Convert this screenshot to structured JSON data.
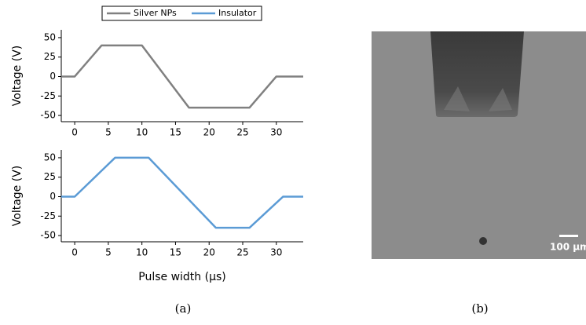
{
  "chart_data": [
    {
      "type": "line",
      "ylabel": "Voltage (V)",
      "x": [
        -2,
        0,
        4,
        10,
        17,
        26,
        30,
        34
      ],
      "series": [
        {
          "name": "Silver NPs",
          "color": "#808080",
          "values": [
            0,
            0,
            40,
            40,
            -40,
            -40,
            0,
            0
          ]
        }
      ],
      "xlim": [
        -2,
        34
      ],
      "ylim": [
        -58,
        60
      ],
      "xticks": [
        0,
        5,
        10,
        15,
        20,
        25,
        30
      ],
      "yticks": [
        -50,
        -25,
        0,
        25,
        50
      ]
    },
    {
      "type": "line",
      "ylabel": "Voltage (V)",
      "xlabel": "Pulse width (μs)",
      "x": [
        -2,
        0,
        6,
        11,
        21,
        26,
        31,
        34
      ],
      "series": [
        {
          "name": "Insulator",
          "color": "#5b9bd5",
          "values": [
            0,
            0,
            50,
            50,
            -40,
            -40,
            0,
            0
          ]
        }
      ],
      "xlim": [
        -2,
        34
      ],
      "ylim": [
        -58,
        60
      ],
      "xticks": [
        0,
        5,
        10,
        15,
        20,
        25,
        30
      ],
      "yticks": [
        -50,
        -25,
        0,
        25,
        50
      ]
    }
  ],
  "panels": [
    "(a)",
    "(b)"
  ],
  "scale_bar": "100 μm"
}
